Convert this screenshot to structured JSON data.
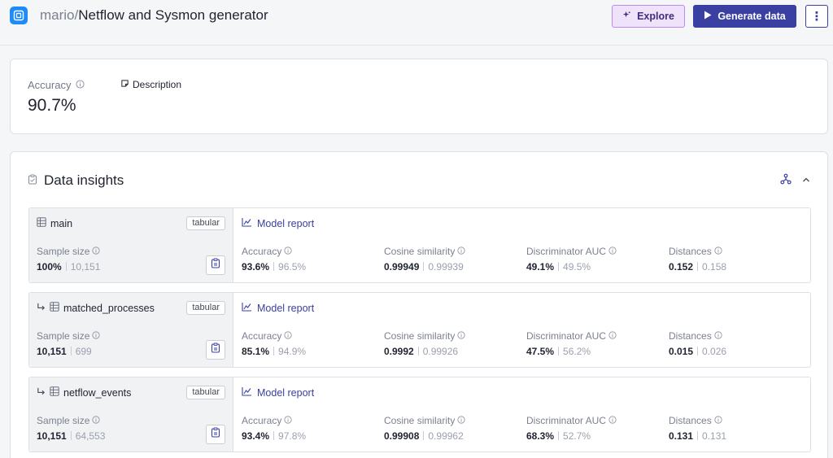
{
  "header": {
    "owner": "mario/",
    "name": "Netflow and Sysmon generator",
    "explore_label": "Explore",
    "generate_label": "Generate data",
    "more_label": "⋮"
  },
  "accuracy_card": {
    "label": "Accuracy",
    "value": "90.7%",
    "description_label": "Description"
  },
  "insights": {
    "title": "Data insights",
    "rows": [
      {
        "table": "main",
        "badge": "tabular",
        "report": "Model report",
        "sample": {
          "label": "Sample size",
          "value": "100%",
          "secondary": "10,151"
        },
        "metrics": [
          {
            "label": "Accuracy",
            "value": "93.6%",
            "secondary": "96.5%"
          },
          {
            "label": "Cosine similarity",
            "value": "0.99949",
            "secondary": "0.99939"
          },
          {
            "label": "Discriminator AUC",
            "value": "49.1%",
            "secondary": "49.5%"
          },
          {
            "label": "Distances",
            "value": "0.152",
            "secondary": "0.158"
          }
        ]
      },
      {
        "table": "matched_processes",
        "badge": "tabular",
        "report": "Model report",
        "sample": {
          "label": "Sample size",
          "value": "10,151",
          "secondary": "699"
        },
        "metrics": [
          {
            "label": "Accuracy",
            "value": "85.1%",
            "secondary": "94.9%"
          },
          {
            "label": "Cosine similarity",
            "value": "0.9992",
            "secondary": "0.99926"
          },
          {
            "label": "Discriminator AUC",
            "value": "47.5%",
            "secondary": "56.2%"
          },
          {
            "label": "Distances",
            "value": "0.015",
            "secondary": "0.026"
          }
        ]
      },
      {
        "table": "netflow_events",
        "badge": "tabular",
        "report": "Model report",
        "sample": {
          "label": "Sample size",
          "value": "10,151",
          "secondary": "64,553"
        },
        "metrics": [
          {
            "label": "Accuracy",
            "value": "93.4%",
            "secondary": "97.8%"
          },
          {
            "label": "Cosine similarity",
            "value": "0.99908",
            "secondary": "0.99962"
          },
          {
            "label": "Discriminator AUC",
            "value": "68.3%",
            "secondary": "52.7%"
          },
          {
            "label": "Distances",
            "value": "0.131",
            "secondary": "0.131"
          }
        ]
      }
    ]
  },
  "colors": {
    "accent": "#3a3fa2",
    "explore_bg": "#efe3fb",
    "app_icon": "#1d8cf8"
  }
}
